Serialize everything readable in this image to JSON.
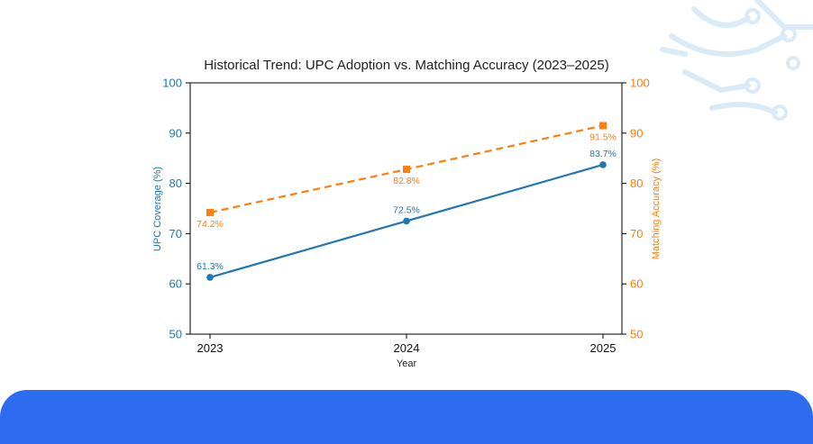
{
  "chart_data": {
    "type": "line",
    "title": "Historical Trend: UPC Adoption vs. Matching Accuracy (2023–2025)",
    "xlabel": "Year",
    "x": [
      "2023",
      "2024",
      "2025"
    ],
    "y_left": {
      "label": "UPC Coverage (%)",
      "range": [
        50,
        100
      ],
      "ticks": [
        "50",
        "60",
        "70",
        "80",
        "90",
        "100"
      ],
      "color": "#1f77b4"
    },
    "y_right": {
      "label": "Matching Accuracy (%)",
      "range": [
        50,
        100
      ],
      "ticks": [
        "50",
        "60",
        "70",
        "80",
        "90",
        "100"
      ],
      "color": "#ff7f0e"
    },
    "series": [
      {
        "axis": "left",
        "values": [
          61.3,
          72.5,
          83.7
        ],
        "labels": [
          "61.3%",
          "72.5%",
          "83.7%"
        ],
        "color": "#1f77b4",
        "style": "solid",
        "marker": "circle"
      },
      {
        "axis": "right",
        "values": [
          74.2,
          82.8,
          91.5
        ],
        "labels": [
          "74.2%",
          "82.8%",
          "91.5%"
        ],
        "color": "#ff7f0e",
        "style": "dashed",
        "marker": "square"
      }
    ],
    "grid": false,
    "legend": "none"
  }
}
